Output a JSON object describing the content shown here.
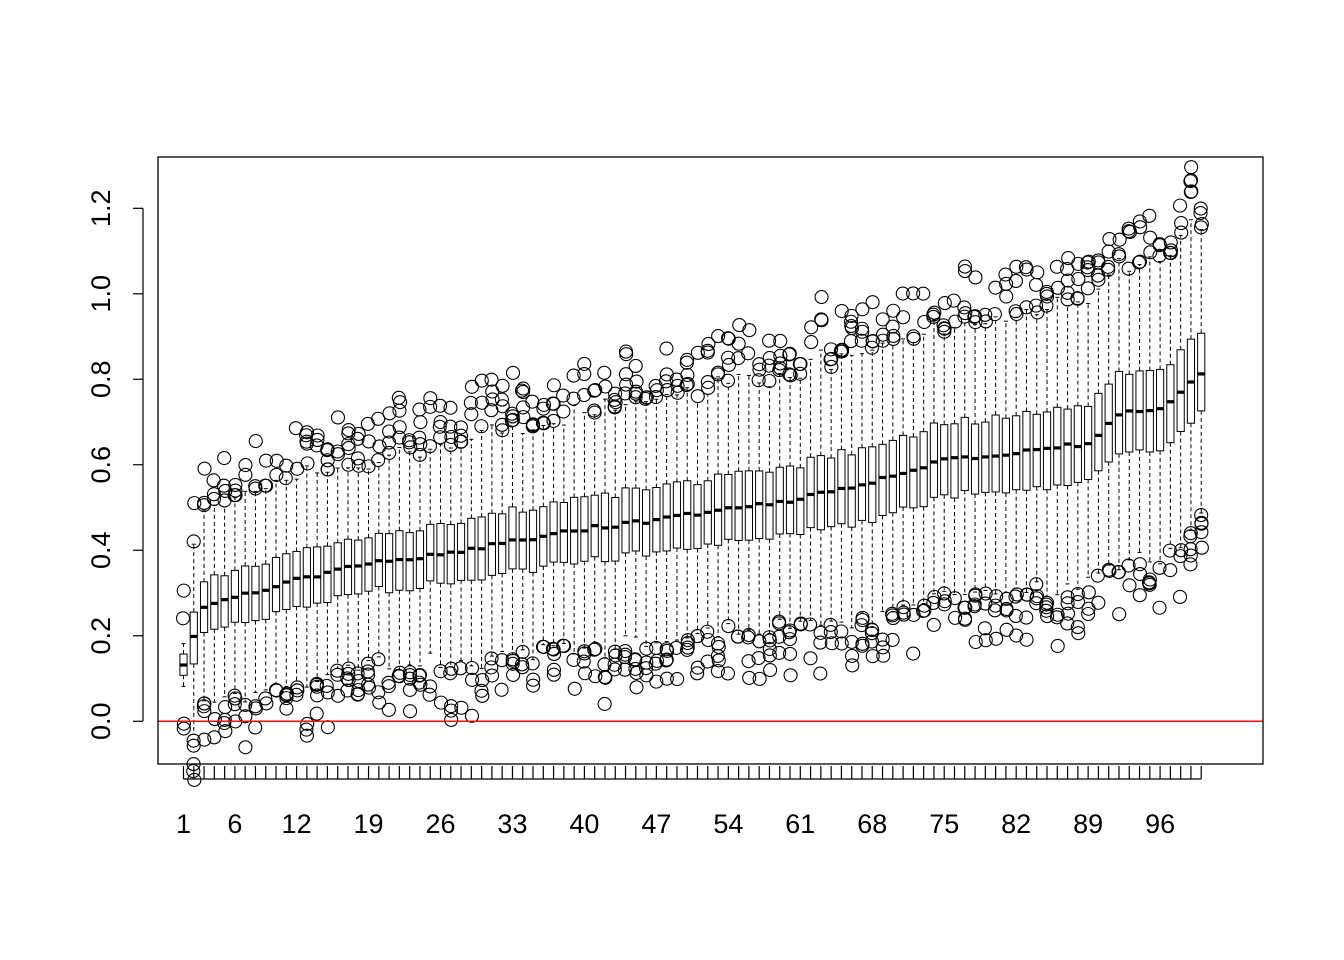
{
  "chart_data": {
    "type": "boxplot",
    "title": "",
    "xlabel": "",
    "ylabel": "",
    "n_boxes": 100,
    "x_tick_labels": [
      "1",
      "6",
      "12",
      "19",
      "26",
      "33",
      "40",
      "47",
      "54",
      "61",
      "68",
      "75",
      "82",
      "89",
      "96"
    ],
    "y_ticks": [
      0.0,
      0.2,
      0.4,
      0.6,
      0.8,
      1.0,
      1.2
    ],
    "y_tick_labels": [
      "0.0",
      "0.2",
      "0.4",
      "0.6",
      "0.8",
      "1.0",
      "1.2"
    ],
    "ylim": [
      -0.1,
      1.32
    ],
    "xlim": [
      0.5,
      100.5
    ],
    "grid": false,
    "reference_line": {
      "y": 0.0,
      "color": "#ee1111"
    },
    "box_line_color": "#000000",
    "median_first": 0.13,
    "median_last": 0.81,
    "median_approx_at": [
      {
        "box": 1,
        "median": 0.13
      },
      {
        "box": 3,
        "median": 0.27
      },
      {
        "box": 12,
        "median": 0.33
      },
      {
        "box": 19,
        "median": 0.37
      },
      {
        "box": 26,
        "median": 0.39
      },
      {
        "box": 33,
        "median": 0.42
      },
      {
        "box": 40,
        "median": 0.45
      },
      {
        "box": 47,
        "median": 0.47
      },
      {
        "box": 54,
        "median": 0.5
      },
      {
        "box": 61,
        "median": 0.52
      },
      {
        "box": 68,
        "median": 0.56
      },
      {
        "box": 75,
        "median": 0.61
      },
      {
        "box": 82,
        "median": 0.63
      },
      {
        "box": 89,
        "median": 0.65
      },
      {
        "box": 92,
        "median": 0.72
      },
      {
        "box": 96,
        "median": 0.73
      },
      {
        "box": 100,
        "median": 0.81
      }
    ]
  }
}
